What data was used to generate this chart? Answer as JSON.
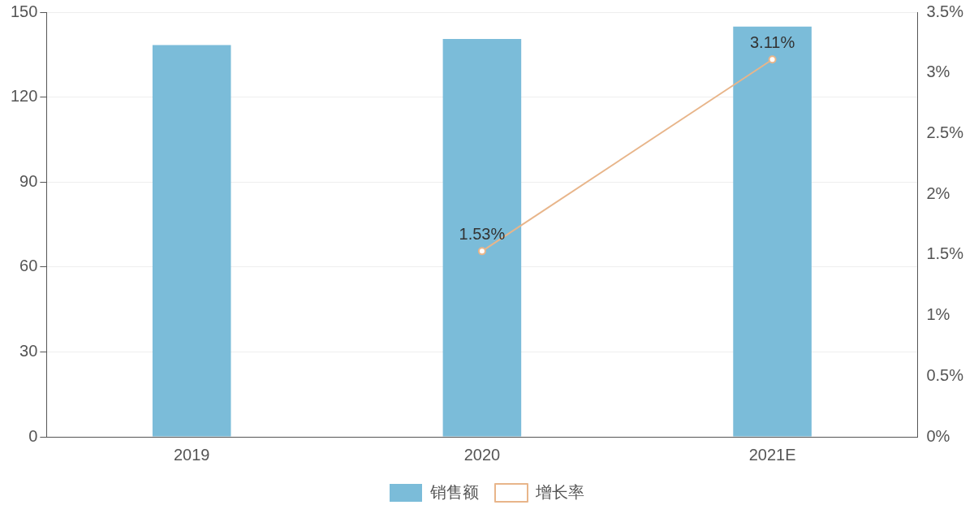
{
  "chart_data": {
    "type": "bar",
    "categories": [
      "2019",
      "2020",
      "2021E"
    ],
    "series": [
      {
        "name": "销售额",
        "color": "#7bbcd9",
        "values": [
          138.4,
          140.5,
          144.9
        ]
      },
      {
        "name": "增长率",
        "type": "line",
        "axis": "y2",
        "color": "#e8b58a",
        "marker": "circle",
        "values": [
          null,
          1.53,
          3.11
        ],
        "value_labels": [
          null,
          "1.53%",
          "3.11%"
        ]
      }
    ],
    "ylim": [
      0,
      150
    ],
    "yticks": [
      0,
      30,
      60,
      90,
      120,
      150
    ],
    "y2lim": [
      0,
      3.5
    ],
    "y2ticks": [
      {
        "value": 0,
        "label": "0%"
      },
      {
        "value": 0.5,
        "label": "0.5%"
      },
      {
        "value": 1,
        "label": "1%"
      },
      {
        "value": 1.5,
        "label": "1.5%"
      },
      {
        "value": 2,
        "label": "2%"
      },
      {
        "value": 2.5,
        "label": "2.5%"
      },
      {
        "value": 3,
        "label": "3%"
      },
      {
        "value": 3.5,
        "label": "3.5%"
      }
    ],
    "grid": "y",
    "legend": "bottom"
  }
}
